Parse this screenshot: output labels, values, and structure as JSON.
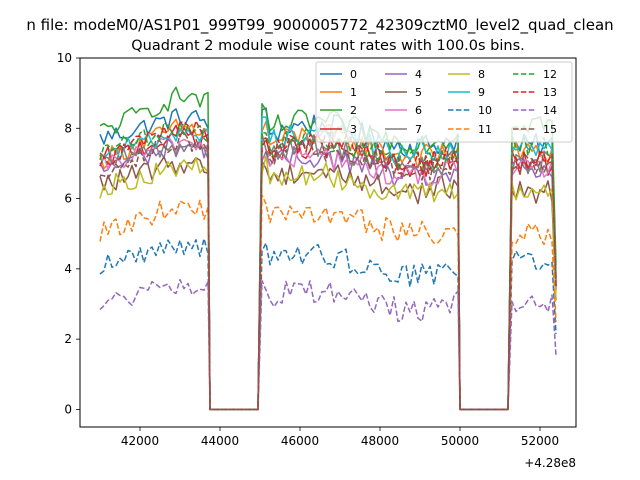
{
  "figure": {
    "suptitle": "n file: modeM0/AS1P01_999T99_9000005772_42309cztM0_level2_quad_clean"
  },
  "chart_data": {
    "type": "line",
    "title": "Quadrant 2 module wise count rates with 100.0s bins.",
    "xlabel": "",
    "ylabel": "",
    "x_offset_label": "+4.28e8",
    "xlim": [
      40500,
      52900
    ],
    "ylim": [
      -0.5,
      10
    ],
    "grid": false,
    "legend_position": "top-right",
    "xticks": [
      42000,
      44000,
      46000,
      48000,
      50000,
      52000
    ],
    "xtick_labels": [
      "42000",
      "44000",
      "46000",
      "48000",
      "50000",
      "52000"
    ],
    "yticks": [
      0,
      2,
      4,
      6,
      8,
      10
    ],
    "ytick_labels": [
      "0",
      "2",
      "4",
      "6",
      "8",
      "10"
    ],
    "segments": [
      {
        "x_start": 41000,
        "x_end": 43700,
        "n": 28
      },
      {
        "x_start": 43750,
        "x_end": 44950,
        "n": 0
      },
      {
        "x_start": 45050,
        "x_end": 49950,
        "n": 50
      },
      {
        "x_start": 50000,
        "x_end": 51200,
        "n": 0
      },
      {
        "x_start": 51300,
        "x_end": 52400,
        "n": 12
      }
    ],
    "series": [
      {
        "name": "0",
        "color": "#1f77b4",
        "dash": false,
        "levels": [
          7.7,
          8.3,
          7.8,
          7.5
        ]
      },
      {
        "name": "1",
        "color": "#ff7f0e",
        "dash": false,
        "levels": [
          7.1,
          8.0,
          7.5,
          7.3
        ]
      },
      {
        "name": "2",
        "color": "#2ca02c",
        "dash": false,
        "levels": [
          7.9,
          8.9,
          7.9,
          8.2
        ]
      },
      {
        "name": "3",
        "color": "#d62728",
        "dash": false,
        "levels": [
          7.1,
          7.8,
          7.2,
          7.0
        ]
      },
      {
        "name": "4",
        "color": "#9467bd",
        "dash": false,
        "levels": [
          6.8,
          7.5,
          6.9,
          6.8
        ]
      },
      {
        "name": "5",
        "color": "#8c564b",
        "dash": false,
        "levels": [
          6.4,
          7.0,
          6.5,
          6.2
        ]
      },
      {
        "name": "6",
        "color": "#e377c2",
        "dash": false,
        "levels": [
          6.9,
          7.6,
          6.9,
          6.8
        ]
      },
      {
        "name": "7",
        "color": "#7f7f7f",
        "dash": false,
        "levels": [
          7.0,
          7.5,
          7.2,
          7.0
        ]
      },
      {
        "name": "8",
        "color": "#bcbd22",
        "dash": false,
        "levels": [
          6.3,
          6.9,
          6.4,
          6.2
        ]
      },
      {
        "name": "9",
        "color": "#17becf",
        "dash": false,
        "levels": [
          7.2,
          7.9,
          7.6,
          7.4
        ]
      },
      {
        "name": "10",
        "color": "#1f77b4",
        "dash": true,
        "levels": [
          4.1,
          4.7,
          4.1,
          4.3
        ]
      },
      {
        "name": "11",
        "color": "#ff7f0e",
        "dash": true,
        "levels": [
          5.0,
          5.8,
          5.3,
          5.0
        ]
      },
      {
        "name": "12",
        "color": "#2ca02c",
        "dash": true,
        "levels": [
          7.3,
          8.0,
          7.4,
          7.5
        ]
      },
      {
        "name": "13",
        "color": "#d62728",
        "dash": true,
        "levels": [
          7.1,
          8.0,
          7.3,
          7.0
        ]
      },
      {
        "name": "14",
        "color": "#9467bd",
        "dash": true,
        "levels": [
          3.0,
          3.5,
          3.1,
          3.1
        ]
      },
      {
        "name": "15",
        "color": "#8c564b",
        "dash": true,
        "levels": [
          6.8,
          7.6,
          7.1,
          7.0
        ]
      }
    ]
  }
}
